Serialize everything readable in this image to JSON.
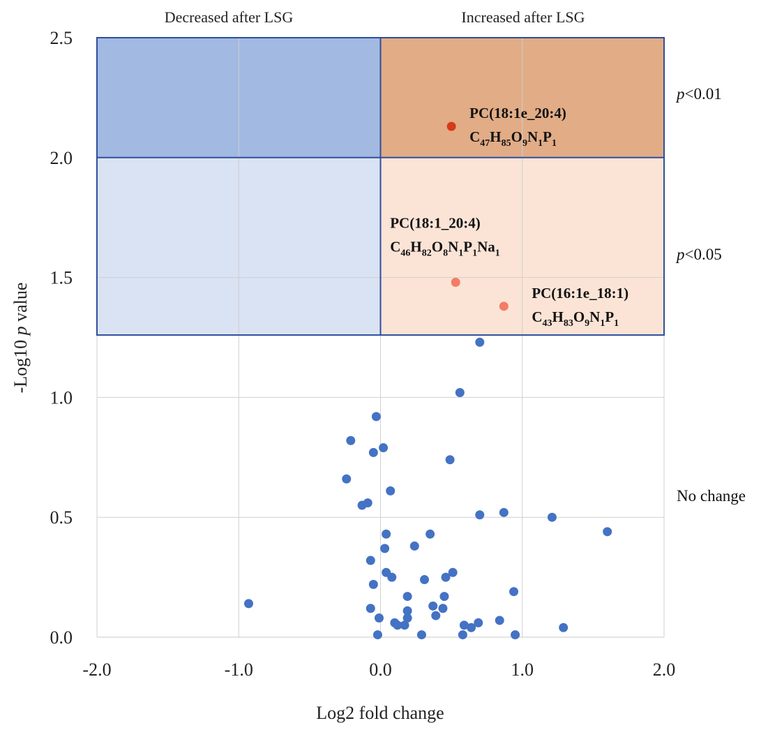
{
  "chart_data": {
    "type": "scatter",
    "xlabel": "Log2  fold change",
    "ylabel_prefix": "-Log10 ",
    "ylabel_italic": "p",
    "ylabel_suffix": " value",
    "xlim": [
      -2.0,
      2.0
    ],
    "ylim": [
      0.0,
      2.5
    ],
    "x_ticks": [
      -2.0,
      -1.0,
      0.0,
      1.0,
      2.0
    ],
    "x_tick_labels": [
      "-2.0",
      "-1.0",
      "0.0",
      "1.0",
      "2.0"
    ],
    "y_ticks": [
      0.0,
      0.5,
      1.0,
      1.5,
      2.0,
      2.5
    ],
    "y_tick_labels": [
      "0.0",
      "0.5",
      "1.0",
      "1.5",
      "2.0",
      "2.5"
    ],
    "grid": true,
    "region_labels": {
      "left": "Decreased after LSG",
      "right": "Increased after LSG"
    },
    "zones": [
      {
        "name": "p<0.01",
        "italic": "p",
        "rest": "<0.01",
        "y_range": [
          2.0,
          2.5
        ],
        "color_left": "#a2b9e2",
        "color_right": "#e1ac86"
      },
      {
        "name": "p<0.05",
        "italic": "p",
        "rest": "<0.05",
        "y_range": [
          1.26,
          2.0
        ],
        "color_left": "#dae3f3",
        "color_right": "#fbe4d6"
      },
      {
        "name": "No change",
        "italic": "",
        "rest": "No change",
        "y_range": [
          0.0,
          1.26
        ]
      }
    ],
    "zone_border_color": "#2f4e9c",
    "highlighted": [
      {
        "x": 0.5,
        "y": 2.13,
        "color": "#d63a17",
        "label": "PC(18:1e_20:4)",
        "formula": [
          [
            "C",
            ""
          ],
          [
            "47",
            "sub"
          ],
          [
            "H",
            ""
          ],
          [
            "85",
            "sub"
          ],
          [
            "O",
            ""
          ],
          [
            "9",
            "sub"
          ],
          [
            "N",
            ""
          ],
          [
            "1",
            "sub"
          ],
          [
            "P",
            ""
          ],
          [
            "1",
            "sub"
          ]
        ]
      },
      {
        "x": 0.53,
        "y": 1.48,
        "color": "#f47b66",
        "label": "PC(18:1_20:4)",
        "formula": [
          [
            "C",
            ""
          ],
          [
            "46",
            "sub"
          ],
          [
            "H",
            ""
          ],
          [
            "82",
            "sub"
          ],
          [
            "O",
            ""
          ],
          [
            "8",
            "sub"
          ],
          [
            "N",
            ""
          ],
          [
            "1",
            "sub"
          ],
          [
            "P",
            ""
          ],
          [
            "1",
            "sub"
          ],
          [
            "Na",
            ""
          ],
          [
            "1",
            "sub"
          ]
        ]
      },
      {
        "x": 0.87,
        "y": 1.38,
        "color": "#f47b66",
        "label": "PC(16:1e_18:1)",
        "formula": [
          [
            "C",
            ""
          ],
          [
            "43",
            "sub"
          ],
          [
            "H",
            ""
          ],
          [
            "83",
            "sub"
          ],
          [
            "O",
            ""
          ],
          [
            "9",
            "sub"
          ],
          [
            "N",
            ""
          ],
          [
            "1",
            "sub"
          ],
          [
            "P",
            ""
          ],
          [
            "1",
            "sub"
          ]
        ]
      }
    ],
    "points_color": "#4472c4",
    "points": [
      [
        0.7,
        1.23
      ],
      [
        0.56,
        1.02
      ],
      [
        -0.03,
        0.92
      ],
      [
        -0.21,
        0.82
      ],
      [
        0.02,
        0.79
      ],
      [
        -0.05,
        0.77
      ],
      [
        0.49,
        0.74
      ],
      [
        -0.24,
        0.66
      ],
      [
        0.07,
        0.61
      ],
      [
        -0.09,
        0.56
      ],
      [
        -0.13,
        0.55
      ],
      [
        0.7,
        0.51
      ],
      [
        0.87,
        0.52
      ],
      [
        1.21,
        0.5
      ],
      [
        1.6,
        0.44
      ],
      [
        0.04,
        0.43
      ],
      [
        0.35,
        0.43
      ],
      [
        0.24,
        0.38
      ],
      [
        0.03,
        0.37
      ],
      [
        -0.07,
        0.32
      ],
      [
        0.04,
        0.27
      ],
      [
        0.08,
        0.25
      ],
      [
        0.31,
        0.24
      ],
      [
        0.46,
        0.25
      ],
      [
        0.51,
        0.27
      ],
      [
        -0.05,
        0.22
      ],
      [
        0.19,
        0.17
      ],
      [
        0.45,
        0.17
      ],
      [
        0.94,
        0.19
      ],
      [
        -0.93,
        0.14
      ],
      [
        0.37,
        0.13
      ],
      [
        -0.07,
        0.12
      ],
      [
        0.19,
        0.11
      ],
      [
        0.44,
        0.12
      ],
      [
        0.19,
        0.08
      ],
      [
        0.39,
        0.09
      ],
      [
        -0.01,
        0.08
      ],
      [
        0.1,
        0.06
      ],
      [
        0.12,
        0.05
      ],
      [
        0.17,
        0.05
      ],
      [
        0.59,
        0.05
      ],
      [
        0.64,
        0.04
      ],
      [
        0.69,
        0.06
      ],
      [
        0.84,
        0.07
      ],
      [
        1.29,
        0.04
      ],
      [
        -0.02,
        0.01
      ],
      [
        0.29,
        0.01
      ],
      [
        0.58,
        0.01
      ],
      [
        0.95,
        0.01
      ]
    ]
  }
}
